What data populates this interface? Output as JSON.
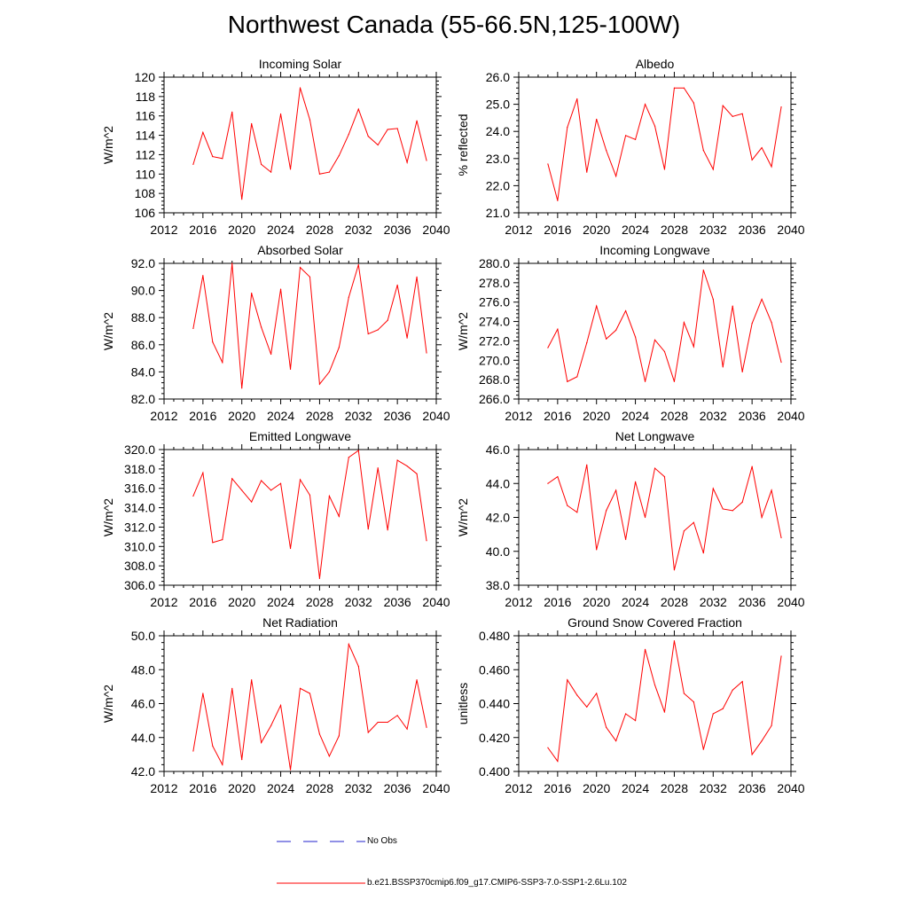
{
  "title": "Northwest Canada (55-66.5N,125-100W)",
  "legend": {
    "no_obs_label": "No Obs",
    "model_label": "b.e21.BSSP370cmip6.f09_g17.CMIP6-SSP3-7.0-SSP1-2.6Lu.102",
    "no_obs_color": "#2222cc",
    "model_color": "#ff0000"
  },
  "chart_data": [
    {
      "type": "line",
      "title": "Incoming Solar",
      "ylabel": "W/m^2",
      "xlim": [
        2012,
        2040
      ],
      "ylim": [
        106,
        120
      ],
      "xticks": [
        2012,
        2016,
        2020,
        2024,
        2028,
        2032,
        2036,
        2040
      ],
      "yticks": [
        106,
        108,
        110,
        112,
        114,
        116,
        118,
        120
      ],
      "ytick_labels": [
        "106",
        "108",
        "110",
        "112",
        "114",
        "116",
        "118",
        "120"
      ],
      "x": [
        2015,
        2016,
        2017,
        2018,
        2019,
        2020,
        2021,
        2022,
        2023,
        2024,
        2025,
        2026,
        2027,
        2028,
        2029,
        2030,
        2031,
        2032,
        2033,
        2034,
        2035,
        2036,
        2037,
        2038,
        2039
      ],
      "series": [
        {
          "values": [
            111.0,
            114.3,
            111.8,
            111.6,
            116.4,
            107.4,
            115.2,
            111.0,
            110.2,
            116.2,
            110.5,
            118.9,
            115.6,
            110.0,
            110.2,
            111.9,
            114.1,
            116.7,
            113.9,
            113.0,
            114.6,
            114.7,
            111.2,
            115.5,
            111.4
          ]
        }
      ]
    },
    {
      "type": "line",
      "title": "Albedo",
      "ylabel": "% reflected",
      "xlim": [
        2012,
        2040
      ],
      "ylim": [
        21,
        26
      ],
      "xticks": [
        2012,
        2016,
        2020,
        2024,
        2028,
        2032,
        2036,
        2040
      ],
      "yticks": [
        21,
        22,
        23,
        24,
        25,
        26
      ],
      "ytick_labels": [
        "21.0",
        "22.0",
        "23.0",
        "24.0",
        "25.0",
        "26.0"
      ],
      "x": [
        2015,
        2016,
        2017,
        2018,
        2019,
        2020,
        2021,
        2022,
        2023,
        2024,
        2025,
        2026,
        2027,
        2028,
        2029,
        2030,
        2031,
        2032,
        2033,
        2034,
        2035,
        2036,
        2037,
        2038,
        2039
      ],
      "series": [
        {
          "values": [
            22.8,
            21.45,
            24.15,
            25.2,
            22.5,
            24.45,
            23.3,
            22.35,
            23.85,
            23.7,
            25.0,
            24.2,
            22.6,
            25.6,
            25.6,
            25.05,
            23.3,
            22.6,
            24.95,
            24.55,
            24.65,
            22.95,
            23.4,
            22.7,
            24.9
          ]
        }
      ]
    },
    {
      "type": "line",
      "title": "Absorbed Solar",
      "ylabel": "W/m^2",
      "xlim": [
        2012,
        2040
      ],
      "ylim": [
        82,
        92
      ],
      "xticks": [
        2012,
        2016,
        2020,
        2024,
        2028,
        2032,
        2036,
        2040
      ],
      "yticks": [
        82,
        84,
        86,
        88,
        90,
        92
      ],
      "ytick_labels": [
        "82.0",
        "84.0",
        "86.0",
        "88.0",
        "90.0",
        "92.0"
      ],
      "x": [
        2015,
        2016,
        2017,
        2018,
        2019,
        2020,
        2021,
        2022,
        2023,
        2024,
        2025,
        2026,
        2027,
        2028,
        2029,
        2030,
        2031,
        2032,
        2033,
        2034,
        2035,
        2036,
        2037,
        2038,
        2039
      ],
      "series": [
        {
          "values": [
            87.2,
            91.1,
            86.2,
            84.7,
            92.0,
            82.8,
            89.8,
            87.3,
            85.3,
            90.1,
            84.2,
            91.7,
            91.0,
            83.1,
            84.0,
            85.8,
            89.5,
            91.9,
            86.8,
            87.1,
            87.8,
            90.4,
            86.5,
            91.0,
            85.4
          ]
        }
      ]
    },
    {
      "type": "line",
      "title": "Incoming Longwave",
      "ylabel": "W/m^2",
      "xlim": [
        2012,
        2040
      ],
      "ylim": [
        266,
        280
      ],
      "xticks": [
        2012,
        2016,
        2020,
        2024,
        2028,
        2032,
        2036,
        2040
      ],
      "yticks": [
        266,
        268,
        270,
        272,
        274,
        276,
        278,
        280
      ],
      "ytick_labels": [
        "266.0",
        "268.0",
        "270.0",
        "272.0",
        "274.0",
        "276.0",
        "278.0",
        "280.0"
      ],
      "x": [
        2015,
        2016,
        2017,
        2018,
        2019,
        2020,
        2021,
        2022,
        2023,
        2024,
        2025,
        2026,
        2027,
        2028,
        2029,
        2030,
        2031,
        2032,
        2033,
        2034,
        2035,
        2036,
        2037,
        2038,
        2039
      ],
      "series": [
        {
          "values": [
            271.3,
            273.2,
            267.8,
            268.3,
            271.8,
            275.6,
            272.2,
            273.1,
            275.1,
            272.4,
            267.8,
            272.1,
            270.9,
            267.8,
            273.9,
            271.4,
            279.3,
            276.3,
            269.3,
            275.6,
            268.8,
            273.8,
            276.3,
            273.9,
            269.8
          ]
        }
      ]
    },
    {
      "type": "line",
      "title": "Emitted Longwave",
      "ylabel": "W/m^2",
      "xlim": [
        2012,
        2040
      ],
      "ylim": [
        306,
        320
      ],
      "xticks": [
        2012,
        2016,
        2020,
        2024,
        2028,
        2032,
        2036,
        2040
      ],
      "yticks": [
        306,
        308,
        310,
        312,
        314,
        316,
        318,
        320
      ],
      "ytick_labels": [
        "306.0",
        "308.0",
        "310.0",
        "312.0",
        "314.0",
        "316.0",
        "318.0",
        "320.0"
      ],
      "x": [
        2015,
        2016,
        2017,
        2018,
        2019,
        2020,
        2021,
        2022,
        2023,
        2024,
        2025,
        2026,
        2027,
        2028,
        2029,
        2030,
        2031,
        2032,
        2033,
        2034,
        2035,
        2036,
        2037,
        2038,
        2039
      ],
      "series": [
        {
          "values": [
            315.2,
            317.6,
            310.4,
            310.7,
            317.0,
            315.8,
            314.6,
            316.8,
            315.8,
            316.5,
            309.8,
            316.9,
            315.3,
            306.7,
            315.2,
            313.1,
            319.2,
            319.9,
            311.8,
            318.1,
            311.7,
            318.9,
            318.3,
            317.5,
            310.6
          ]
        }
      ]
    },
    {
      "type": "line",
      "title": "Net Longwave",
      "ylabel": "W/m^2",
      "xlim": [
        2012,
        2040
      ],
      "ylim": [
        38,
        46
      ],
      "xticks": [
        2012,
        2016,
        2020,
        2024,
        2028,
        2032,
        2036,
        2040
      ],
      "yticks": [
        38,
        40,
        42,
        44,
        46
      ],
      "ytick_labels": [
        "38.0",
        "40.0",
        "42.0",
        "44.0",
        "46.0"
      ],
      "x": [
        2015,
        2016,
        2017,
        2018,
        2019,
        2020,
        2021,
        2022,
        2023,
        2024,
        2025,
        2026,
        2027,
        2028,
        2029,
        2030,
        2031,
        2032,
        2033,
        2034,
        2035,
        2036,
        2037,
        2038,
        2039
      ],
      "series": [
        {
          "values": [
            44.0,
            44.4,
            42.7,
            42.3,
            45.1,
            40.1,
            42.4,
            43.6,
            40.7,
            44.1,
            42.0,
            44.9,
            44.4,
            38.9,
            41.2,
            41.7,
            39.9,
            43.7,
            42.5,
            42.4,
            42.9,
            45.0,
            42.0,
            43.6,
            40.8
          ]
        }
      ]
    },
    {
      "type": "line",
      "title": "Net Radiation",
      "ylabel": "W/m^2",
      "xlim": [
        2012,
        2040
      ],
      "ylim": [
        42,
        50
      ],
      "xticks": [
        2012,
        2016,
        2020,
        2024,
        2028,
        2032,
        2036,
        2040
      ],
      "yticks": [
        42,
        44,
        46,
        48,
        50
      ],
      "ytick_labels": [
        "42.0",
        "44.0",
        "46.0",
        "48.0",
        "50.0"
      ],
      "x": [
        2015,
        2016,
        2017,
        2018,
        2019,
        2020,
        2021,
        2022,
        2023,
        2024,
        2025,
        2026,
        2027,
        2028,
        2029,
        2030,
        2031,
        2032,
        2033,
        2034,
        2035,
        2036,
        2037,
        2038,
        2039
      ],
      "series": [
        {
          "values": [
            43.2,
            46.6,
            43.5,
            42.4,
            46.9,
            42.7,
            47.4,
            43.7,
            44.7,
            45.9,
            42.1,
            46.9,
            46.6,
            44.2,
            42.9,
            44.1,
            49.5,
            48.2,
            44.3,
            44.9,
            44.9,
            45.3,
            44.5,
            47.4,
            44.6
          ]
        }
      ]
    },
    {
      "type": "line",
      "title": "Ground Snow Covered Fraction",
      "ylabel": "unitless",
      "xlim": [
        2012,
        2040
      ],
      "ylim": [
        0.4,
        0.48
      ],
      "xticks": [
        2012,
        2016,
        2020,
        2024,
        2028,
        2032,
        2036,
        2040
      ],
      "yticks": [
        0.4,
        0.42,
        0.44,
        0.46,
        0.48
      ],
      "ytick_labels": [
        "0.400",
        "0.420",
        "0.440",
        "0.460",
        "0.480"
      ],
      "x": [
        2015,
        2016,
        2017,
        2018,
        2019,
        2020,
        2021,
        2022,
        2023,
        2024,
        2025,
        2026,
        2027,
        2028,
        2029,
        2030,
        2031,
        2032,
        2033,
        2034,
        2035,
        2036,
        2037,
        2038,
        2039
      ],
      "series": [
        {
          "values": [
            0.414,
            0.406,
            0.454,
            0.445,
            0.438,
            0.446,
            0.426,
            0.418,
            0.434,
            0.43,
            0.472,
            0.451,
            0.435,
            0.477,
            0.446,
            0.441,
            0.413,
            0.434,
            0.437,
            0.448,
            0.453,
            0.41,
            0.418,
            0.427,
            0.468
          ]
        }
      ]
    }
  ]
}
